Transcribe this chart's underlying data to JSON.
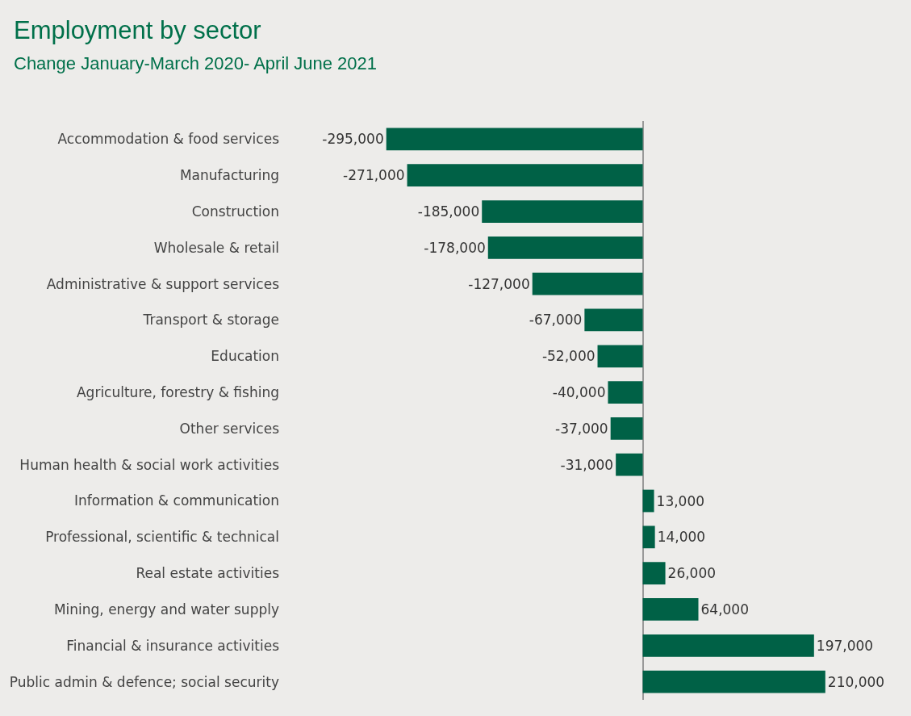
{
  "chart_data": {
    "type": "bar",
    "orientation": "horizontal",
    "title": "Employment by sector",
    "subtitle": "Change January-March 2020- April June 2021",
    "categories": [
      "Accommodation & food services",
      "Manufacturing",
      "Construction",
      "Wholesale & retail",
      "Administrative & support services",
      "Transport & storage",
      "Education",
      "Agriculture, forestry & fishing",
      "Other services",
      "Human health & social work activities",
      "Information & communication",
      "Professional, scientific & technical",
      "Real estate activities",
      "Mining, energy and water supply",
      "Financial & insurance activities",
      "Public admin & defence; social security"
    ],
    "values": [
      -295000,
      -271000,
      -185000,
      -178000,
      -127000,
      -67000,
      -52000,
      -40000,
      -37000,
      -31000,
      13000,
      14000,
      26000,
      64000,
      197000,
      210000
    ],
    "value_labels": [
      "-295,000",
      "-271,000",
      "-185,000",
      "-178,000",
      "-127,000",
      "-67,000",
      "-52,000",
      "-40,000",
      "-37,000",
      "-31,000",
      "13,000",
      "14,000",
      "26,000",
      "64,000",
      "197,000",
      "210,000"
    ],
    "color": "#006146",
    "tick_labels": "y",
    "grid": false
  }
}
